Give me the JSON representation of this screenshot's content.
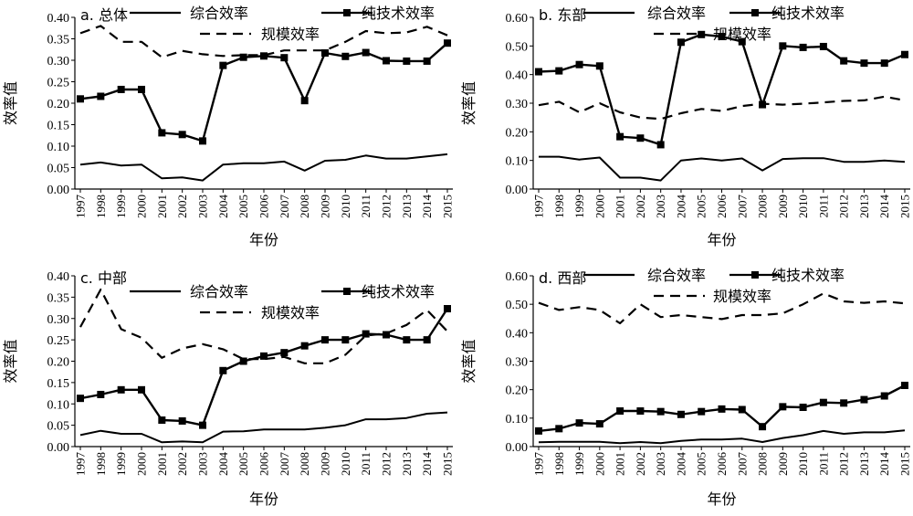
{
  "chart_data": [
    {
      "type": "line",
      "title": "a. 总体",
      "xlabel": "年份",
      "ylabel": "效率值",
      "ylim": [
        0,
        0.4
      ],
      "yticks": [
        "0.00",
        "0.05",
        "0.10",
        "0.15",
        "0.20",
        "0.25",
        "0.30",
        "0.35",
        "0.40"
      ],
      "categories": [
        "1997",
        "1998",
        "1999",
        "2000",
        "2001",
        "2002",
        "2003",
        "2004",
        "2005",
        "2006",
        "2007",
        "2008",
        "2009",
        "2010",
        "2011",
        "2012",
        "2013",
        "2014",
        "2015"
      ],
      "legend_location": "top",
      "series": [
        {
          "name": "综合效率",
          "style": "solid",
          "values": [
            0.057,
            0.062,
            0.055,
            0.057,
            0.025,
            0.027,
            0.02,
            0.057,
            0.06,
            0.06,
            0.064,
            0.043,
            0.066,
            0.068,
            0.078,
            0.071,
            0.071,
            0.076,
            0.081
          ]
        },
        {
          "name": "纯技术效率",
          "style": "marker",
          "values": [
            0.21,
            0.216,
            0.232,
            0.232,
            0.131,
            0.127,
            0.112,
            0.288,
            0.307,
            0.31,
            0.306,
            0.206,
            0.317,
            0.309,
            0.318,
            0.299,
            0.298,
            0.298,
            0.34
          ]
        },
        {
          "name": "规模效率",
          "style": "dashed",
          "values": [
            0.363,
            0.38,
            0.343,
            0.343,
            0.307,
            0.322,
            0.314,
            0.31,
            0.312,
            0.312,
            0.323,
            0.323,
            0.323,
            0.343,
            0.368,
            0.363,
            0.365,
            0.378,
            0.358
          ]
        }
      ]
    },
    {
      "type": "line",
      "title": "b. 东部",
      "xlabel": "年份",
      "ylabel": "效率值",
      "ylim": [
        0,
        0.6
      ],
      "yticks": [
        "0.00",
        "0.10",
        "0.20",
        "0.30",
        "0.40",
        "0.50",
        "0.60"
      ],
      "categories": [
        "1997",
        "1998",
        "1999",
        "2000",
        "2001",
        "2002",
        "2003",
        "2004",
        "2005",
        "2006",
        "2007",
        "2008",
        "2009",
        "2010",
        "2011",
        "2012",
        "2013",
        "2014",
        "2015"
      ],
      "legend_location": "top",
      "series": [
        {
          "name": "综合效率",
          "style": "solid",
          "values": [
            0.113,
            0.113,
            0.103,
            0.11,
            0.04,
            0.04,
            0.03,
            0.1,
            0.107,
            0.1,
            0.107,
            0.065,
            0.105,
            0.108,
            0.108,
            0.095,
            0.095,
            0.1,
            0.095
          ]
        },
        {
          "name": "纯技术效率",
          "style": "marker",
          "values": [
            0.41,
            0.413,
            0.435,
            0.43,
            0.183,
            0.178,
            0.155,
            0.513,
            0.54,
            0.533,
            0.515,
            0.295,
            0.5,
            0.495,
            0.498,
            0.448,
            0.44,
            0.44,
            0.47
          ]
        },
        {
          "name": "规模效率",
          "style": "dashed",
          "values": [
            0.293,
            0.305,
            0.268,
            0.3,
            0.268,
            0.25,
            0.245,
            0.265,
            0.28,
            0.273,
            0.29,
            0.298,
            0.295,
            0.298,
            0.303,
            0.308,
            0.31,
            0.323,
            0.31
          ]
        }
      ]
    },
    {
      "type": "line",
      "title": "c. 中部",
      "xlabel": "年份",
      "ylabel": "效率值",
      "ylim": [
        0,
        0.4
      ],
      "yticks": [
        "0.00",
        "0.05",
        "0.10",
        "0.15",
        "0.20",
        "0.25",
        "0.30",
        "0.35",
        "0.40"
      ],
      "categories": [
        "1997",
        "1998",
        "1999",
        "2000",
        "2001",
        "2002",
        "2003",
        "2004",
        "2005",
        "2006",
        "2007",
        "2008",
        "2009",
        "2010",
        "2011",
        "2012",
        "2013",
        "2014",
        "2015"
      ],
      "legend_location": "top",
      "series": [
        {
          "name": "综合效率",
          "style": "solid",
          "values": [
            0.027,
            0.037,
            0.03,
            0.03,
            0.01,
            0.012,
            0.01,
            0.035,
            0.036,
            0.04,
            0.04,
            0.04,
            0.044,
            0.05,
            0.064,
            0.064,
            0.067,
            0.077,
            0.08
          ]
        },
        {
          "name": "纯技术效率",
          "style": "marker",
          "values": [
            0.113,
            0.122,
            0.133,
            0.133,
            0.062,
            0.06,
            0.05,
            0.178,
            0.2,
            0.212,
            0.22,
            0.236,
            0.25,
            0.25,
            0.264,
            0.262,
            0.25,
            0.25,
            0.323
          ]
        },
        {
          "name": "规模效率",
          "style": "dashed",
          "values": [
            0.28,
            0.368,
            0.275,
            0.255,
            0.208,
            0.23,
            0.24,
            0.228,
            0.205,
            0.205,
            0.21,
            0.195,
            0.195,
            0.215,
            0.26,
            0.265,
            0.285,
            0.32,
            0.27
          ]
        }
      ]
    },
    {
      "type": "line",
      "title": "d. 西部",
      "xlabel": "年份",
      "ylabel": "效率值",
      "ylim": [
        0,
        0.6
      ],
      "yticks": [
        "0.00",
        "0.10",
        "0.20",
        "0.30",
        "0.40",
        "0.50",
        "0.60"
      ],
      "categories": [
        "1997",
        "1998",
        "1999",
        "2000",
        "2001",
        "2002",
        "2003",
        "2004",
        "2005",
        "2006",
        "2007",
        "2008",
        "2009",
        "2010",
        "2011",
        "2012",
        "2013",
        "2014",
        "2015"
      ],
      "legend_location": "top",
      "series": [
        {
          "name": "综合效率",
          "style": "solid",
          "values": [
            0.015,
            0.017,
            0.017,
            0.017,
            0.012,
            0.016,
            0.012,
            0.02,
            0.025,
            0.025,
            0.028,
            0.016,
            0.03,
            0.04,
            0.055,
            0.045,
            0.05,
            0.05,
            0.057
          ]
        },
        {
          "name": "纯技术效率",
          "style": "marker",
          "values": [
            0.055,
            0.063,
            0.083,
            0.08,
            0.125,
            0.125,
            0.123,
            0.113,
            0.123,
            0.132,
            0.13,
            0.07,
            0.14,
            0.138,
            0.155,
            0.153,
            0.165,
            0.178,
            0.215
          ]
        },
        {
          "name": "规模效率",
          "style": "dashed",
          "values": [
            0.505,
            0.48,
            0.49,
            0.48,
            0.433,
            0.5,
            0.455,
            0.462,
            0.455,
            0.448,
            0.462,
            0.462,
            0.468,
            0.5,
            0.538,
            0.51,
            0.505,
            0.51,
            0.503
          ]
        }
      ]
    }
  ]
}
